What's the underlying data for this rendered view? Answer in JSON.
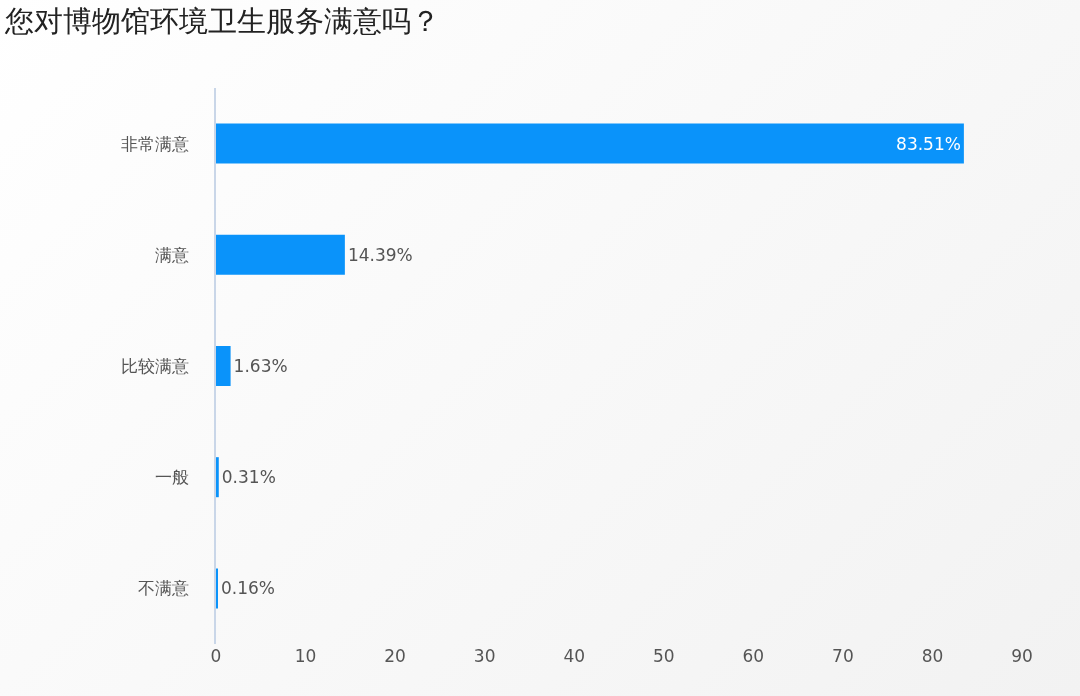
{
  "chart_data": {
    "type": "bar",
    "orientation": "horizontal",
    "title": "您对博物馆环境卫生服务满意吗？",
    "categories": [
      "非常满意",
      "满意",
      "比较满意",
      "一般",
      "不满意"
    ],
    "values": [
      83.51,
      14.39,
      1.63,
      0.31,
      0.16
    ],
    "value_labels": [
      "83.51%",
      "14.39%",
      "1.63%",
      "0.31%",
      "0.16%"
    ],
    "color": "#0a93fa",
    "xlim": [
      0,
      90
    ],
    "xticks": [
      0,
      10,
      20,
      30,
      40,
      50,
      60,
      70,
      80,
      90
    ],
    "grid": false
  }
}
